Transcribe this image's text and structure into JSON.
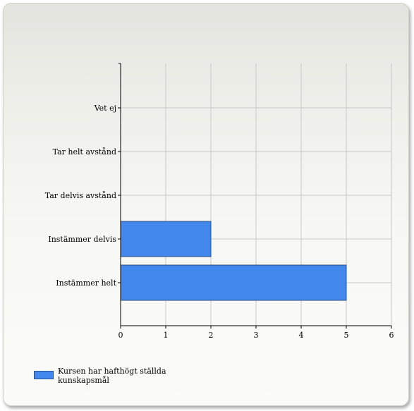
{
  "chart_data": {
    "type": "bar",
    "orientation": "horizontal",
    "categories": [
      "Vet ej",
      "Tar helt avstånd",
      "Tar delvis avstånd",
      "Instämmer delvis",
      "Instämmer helt"
    ],
    "series": [
      {
        "name": "Kursen har hafthögt ställda kunskapsmål",
        "values": [
          0,
          0,
          0,
          2,
          5
        ],
        "color": "#4287ec"
      }
    ],
    "xlim": [
      0,
      6
    ],
    "x_ticks": [
      "0",
      "1",
      "2",
      "3",
      "4",
      "5",
      "6"
    ],
    "grid": true,
    "legend": "bottom-left"
  },
  "legend": {
    "label": "Kursen har hafthögt ställda kunskapsmål"
  }
}
